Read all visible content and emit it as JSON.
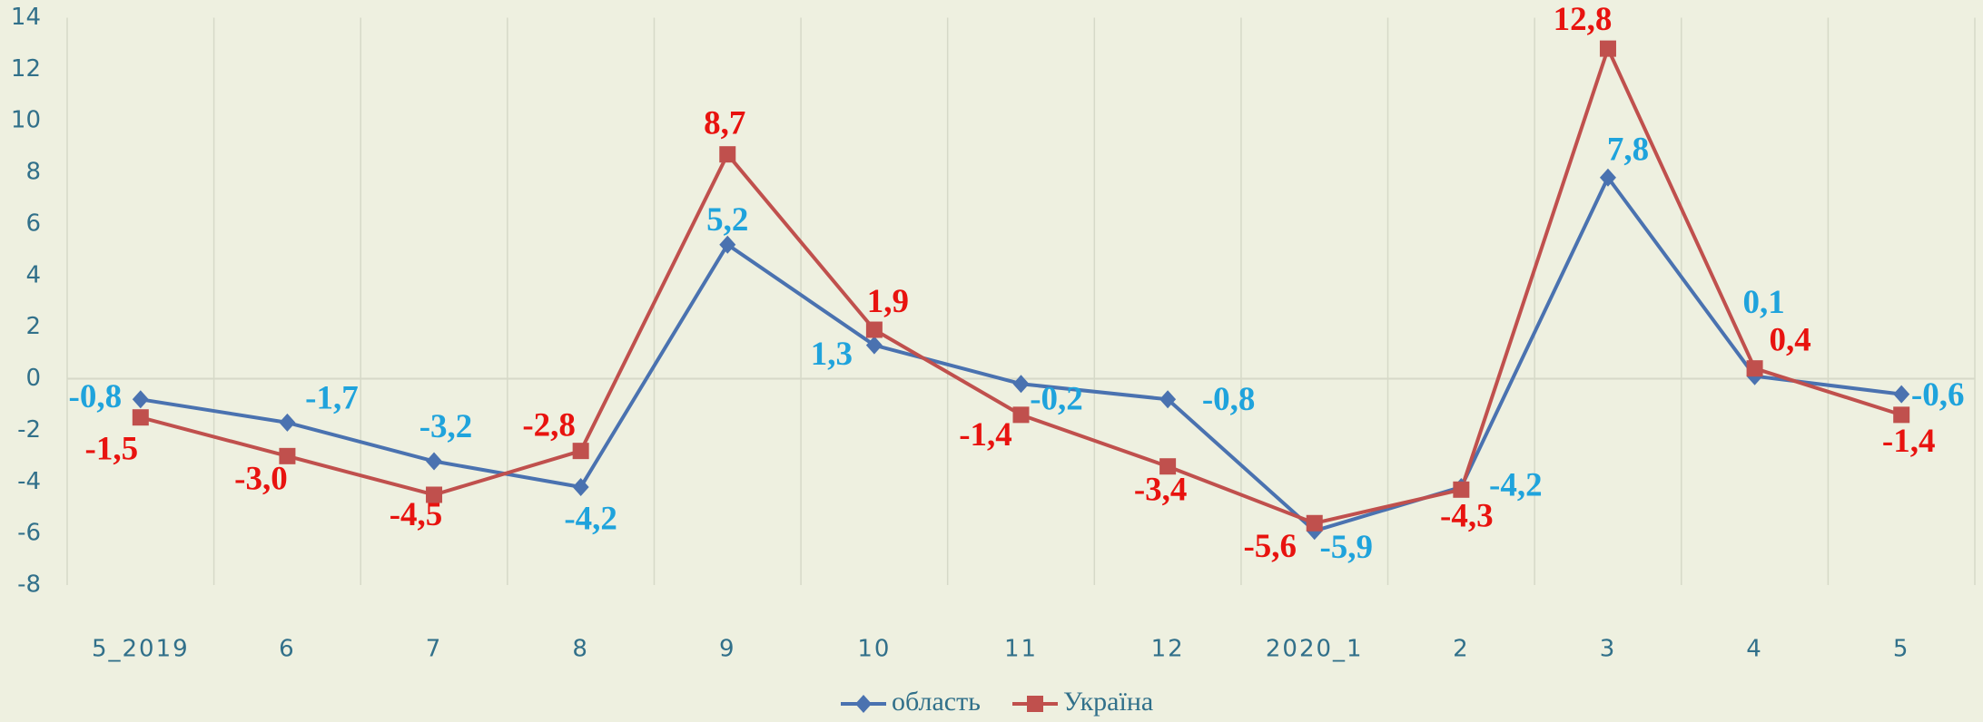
{
  "chart_data": {
    "type": "line",
    "categories": [
      "5_2019",
      "6",
      "7",
      "8",
      "9",
      "10",
      "11",
      "12",
      "2020_1",
      "2",
      "3",
      "4",
      "5"
    ],
    "series": [
      {
        "name": "область",
        "color": "#4a72b0",
        "label_color": "#1fa3dc",
        "marker": "diamond",
        "values": [
          -0.8,
          -1.7,
          -3.2,
          -4.2,
          5.2,
          1.3,
          -0.2,
          -0.8,
          -5.9,
          -4.2,
          7.8,
          0.1,
          -0.6
        ],
        "value_labels": [
          "-0,8",
          "-1,7",
          "-3,2",
          "-4,2",
          "5,2",
          "1,3",
          "-0,2",
          "-0,8",
          "-5,9",
          "-4,2",
          "7,8",
          "0,1",
          "-0,6"
        ]
      },
      {
        "name": "Україна",
        "color": "#c0504d",
        "label_color": "#e8130f",
        "marker": "square",
        "values": [
          -1.5,
          -3.0,
          -4.5,
          -2.8,
          8.7,
          1.9,
          -1.4,
          -3.4,
          -5.6,
          -4.3,
          12.8,
          0.4,
          -1.4
        ],
        "value_labels": [
          "-1,5",
          "-3,0",
          "-4,5",
          "-2,8",
          "8,7",
          "1,9",
          "-1,4",
          "-3,4",
          "-5,6",
          "-4,3",
          "12,8",
          "0,4",
          "-1,4"
        ]
      }
    ],
    "ylim": [
      -8,
      14
    ],
    "yticks": [
      -8,
      -6,
      -4,
      -2,
      0,
      2,
      4,
      6,
      8,
      10,
      12,
      14
    ],
    "grid": true,
    "legend": "bottom"
  }
}
